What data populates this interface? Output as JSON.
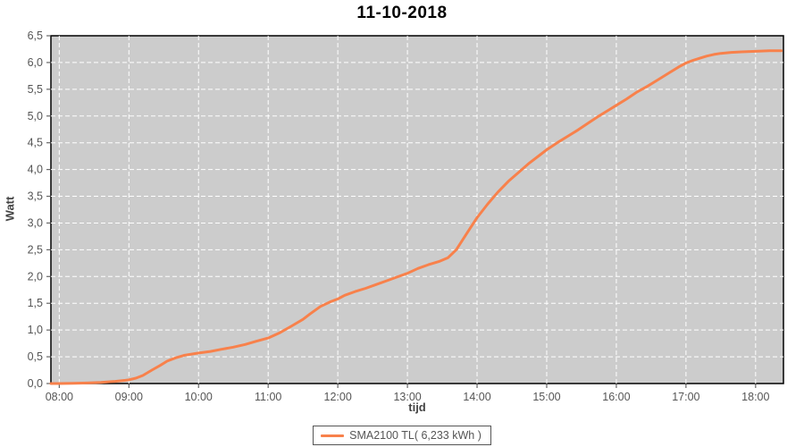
{
  "title": "11-10-2018",
  "colors": {
    "series_orange": "#f8814b",
    "plot_background": "#cccccc",
    "gridline": "#ffffff",
    "plot_border": "#000000",
    "tick": "#666666",
    "tick_label": "#555555",
    "axis_title": "#444444",
    "outer_background": "#ffffff"
  },
  "chart_data": {
    "type": "line",
    "title": "11-10-2018",
    "xlabel": "tijd",
    "ylabel": "Watt",
    "grid": true,
    "plot_bg": "#cccccc",
    "xlim": [
      7.88,
      18.4
    ],
    "ylim": [
      0,
      6.5
    ],
    "x_tick_hours": [
      8,
      9,
      10,
      11,
      12,
      13,
      14,
      15,
      16,
      17,
      18
    ],
    "x_tick_labels": [
      "08:00",
      "09:00",
      "10:00",
      "11:00",
      "12:00",
      "13:00",
      "14:00",
      "15:00",
      "16:00",
      "17:00",
      "18:00"
    ],
    "y_tick_values": [
      0,
      0.5,
      1,
      1.5,
      2,
      2.5,
      3,
      3.5,
      4,
      4.5,
      5,
      5.5,
      6,
      6.5
    ],
    "y_tick_labels": [
      "0,0",
      "0,5",
      "1,0",
      "1,5",
      "2,0",
      "2,5",
      "3,0",
      "3,5",
      "4,0",
      "4,5",
      "5,0",
      "5,5",
      "6,0",
      "6,5"
    ],
    "legend": {
      "position": "bottom-center",
      "entries": [
        {
          "label": "SMA2100 TL( 6,233 kWh )",
          "color": "#f8814b"
        }
      ]
    },
    "series": [
      {
        "name": "SMA2100 TL( 6,233 kWh )",
        "color": "#f8814b",
        "total_kwh_label": "6,233 kWh",
        "points": [
          [
            7.88,
            0.0
          ],
          [
            8.0,
            0.0
          ],
          [
            8.2,
            0.005
          ],
          [
            8.4,
            0.01
          ],
          [
            8.6,
            0.02
          ],
          [
            8.8,
            0.04
          ],
          [
            8.95,
            0.06
          ],
          [
            9.0,
            0.07
          ],
          [
            9.1,
            0.1
          ],
          [
            9.2,
            0.15
          ],
          [
            9.33,
            0.25
          ],
          [
            9.45,
            0.34
          ],
          [
            9.55,
            0.42
          ],
          [
            9.67,
            0.48
          ],
          [
            9.8,
            0.53
          ],
          [
            9.9,
            0.55
          ],
          [
            10.0,
            0.57
          ],
          [
            10.17,
            0.6
          ],
          [
            10.33,
            0.64
          ],
          [
            10.5,
            0.68
          ],
          [
            10.67,
            0.73
          ],
          [
            10.83,
            0.79
          ],
          [
            11.0,
            0.85
          ],
          [
            11.17,
            0.95
          ],
          [
            11.33,
            1.07
          ],
          [
            11.5,
            1.2
          ],
          [
            11.6,
            1.3
          ],
          [
            11.75,
            1.44
          ],
          [
            11.9,
            1.53
          ],
          [
            12.0,
            1.58
          ],
          [
            12.1,
            1.65
          ],
          [
            12.25,
            1.72
          ],
          [
            12.4,
            1.78
          ],
          [
            12.55,
            1.85
          ],
          [
            12.7,
            1.92
          ],
          [
            12.85,
            1.99
          ],
          [
            13.0,
            2.06
          ],
          [
            13.15,
            2.15
          ],
          [
            13.3,
            2.22
          ],
          [
            13.45,
            2.28
          ],
          [
            13.58,
            2.35
          ],
          [
            13.7,
            2.5
          ],
          [
            13.85,
            2.8
          ],
          [
            14.0,
            3.1
          ],
          [
            14.15,
            3.35
          ],
          [
            14.3,
            3.58
          ],
          [
            14.45,
            3.78
          ],
          [
            14.6,
            3.95
          ],
          [
            14.75,
            4.12
          ],
          [
            14.9,
            4.27
          ],
          [
            15.0,
            4.37
          ],
          [
            15.15,
            4.5
          ],
          [
            15.3,
            4.62
          ],
          [
            15.45,
            4.74
          ],
          [
            15.6,
            4.87
          ],
          [
            15.75,
            5.0
          ],
          [
            15.9,
            5.12
          ],
          [
            16.0,
            5.2
          ],
          [
            16.15,
            5.32
          ],
          [
            16.3,
            5.45
          ],
          [
            16.45,
            5.56
          ],
          [
            16.6,
            5.68
          ],
          [
            16.75,
            5.8
          ],
          [
            16.9,
            5.92
          ],
          [
            17.0,
            5.99
          ],
          [
            17.1,
            6.04
          ],
          [
            17.2,
            6.08
          ],
          [
            17.3,
            6.12
          ],
          [
            17.4,
            6.15
          ],
          [
            17.5,
            6.17
          ],
          [
            17.65,
            6.19
          ],
          [
            17.8,
            6.2
          ],
          [
            18.0,
            6.21
          ],
          [
            18.2,
            6.22
          ],
          [
            18.37,
            6.22
          ]
        ]
      }
    ]
  }
}
